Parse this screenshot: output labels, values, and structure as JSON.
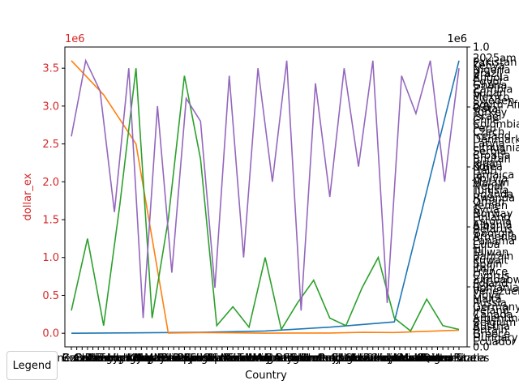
{
  "chart_data": {
    "type": "line",
    "title": "",
    "xlabel": "Country",
    "ylabel": "dollar_ex",
    "left_axis": {
      "label_color": "#d62728",
      "ylim": [
        -180000,
        3780000
      ],
      "ticks": [
        0.0,
        0.5,
        1.0,
        1.5,
        2.0,
        2.5,
        3.0,
        3.5
      ],
      "tick_labels": [
        "0.0",
        "0.5",
        "1.0",
        "1.5",
        "2.0",
        "2.5",
        "3.0",
        "3.5"
      ],
      "offset_text": "1e6"
    },
    "right_axis": {
      "ylim": [
        0.0,
        1.0
      ],
      "ticks": [
        0.0,
        0.2,
        0.4,
        0.6,
        0.8,
        1.0
      ],
      "tick_labels": [
        "0.0",
        "0.2",
        "0.4",
        "0.6",
        "0.8",
        "1.0"
      ],
      "offset_text": "1e6",
      "overlapping_labels": [
        "2025am",
        "Pakistan",
        "Kenya",
        "Nigeria",
        "Brazil",
        "Angola",
        "Egypt",
        "Ghana",
        "Zambia",
        "Sudan",
        "Mexico",
        "Sweden",
        "South Africa",
        "Qatar",
        "Turkey",
        "Israel",
        "Chile",
        "Colombia",
        "Peru",
        "Czech",
        "Iceland",
        "Denmark",
        "Latvia",
        "Lithuania",
        "Serbia",
        "Croatia",
        "Bhutan",
        "Japan",
        "Korea",
        "Haiti",
        "Jamaica",
        "Bolivia",
        "Malawi",
        "Nepal",
        "Tunisia",
        "Uganda",
        "Rwanda",
        "Oman",
        "Yemen",
        "Syria",
        "Norway",
        "Finland",
        "Estonia",
        "Albania",
        "Belarus",
        "Georgia",
        "Armenia",
        "Panama",
        "Cuba",
        "Fiji",
        "Taiwan",
        "Bahrain",
        "Kuwait",
        "Spain",
        "Italy",
        "France",
        "Cyprus",
        "Zimbabwe",
        "Poland",
        "Romania",
        "Venezuela",
        "Libya",
        "Malta",
        "Russia",
        "Germany",
        "Ireland",
        "Canada",
        "Argentina",
        "Belgium",
        "Austria",
        "Britain",
        "Greece",
        "Hungary",
        "Ecuador"
      ]
    },
    "x_tick_labels": [
      "Venezuela",
      "Brazil",
      "Canada",
      "Chile",
      "Britain",
      "Colombia",
      "Czech",
      "Denmark",
      "Egypt",
      "Euro area",
      "Hong Kong",
      "Hungary",
      "India",
      "Indonesia",
      "Israel",
      "Japan",
      "Malaysia",
      "Mexico",
      "New Zealand",
      "Norway",
      "Pakistan",
      "Peru",
      "Philippines",
      "Poland",
      "Russia",
      "Saudi Arabia",
      "Singapore",
      "South Africa",
      "South Korea",
      "Sri Lanka",
      "Sweden",
      "Switzerland",
      "Taiwan",
      "Thailand",
      "Turkey",
      "UAE",
      "Ukraine",
      "Uruguay",
      "Vietnam",
      "Argentina",
      "Australia",
      "Austria",
      "Belgium",
      "Finland",
      "France",
      "Germany",
      "Greece",
      "Ireland",
      "Italy",
      "Netherlands",
      "Portugal",
      "Spain",
      "Estonia",
      "Latvia",
      "Lithuania",
      "Slovakia",
      "Slovenia",
      "Azerbaijan",
      "Bahrain",
      "Croatia",
      "Guatemala",
      "Honduras",
      "Jordan",
      "Kuwait",
      "Lebanon",
      "Moldova",
      "Nicaragua",
      "Oman",
      "Qatar",
      "Romania",
      "Costa Rica",
      "United States",
      "Venezuela"
    ],
    "series": [
      {
        "color": "#1f77b4",
        "values": [
          0,
          5000,
          12000,
          30000,
          80000,
          150000,
          3600000
        ]
      },
      {
        "color": "#ff7f0e",
        "values": [
          3600000,
          3150000,
          2500000,
          2000,
          8000,
          5000,
          1000,
          3000,
          2500,
          12000,
          9000,
          25000,
          40000
        ]
      },
      {
        "color": "#2ca02c",
        "values": [
          300000,
          1250000,
          100000,
          1700000,
          3500000,
          200000,
          1500000,
          3400000,
          2300000,
          100000,
          350000,
          80000,
          1000000,
          50000,
          400000,
          700000,
          200000,
          100000,
          600000,
          1000000,
          200000,
          30000,
          450000,
          100000,
          50000
        ]
      },
      {
        "color": "#9467bd",
        "values": [
          2600000,
          3600000,
          3200000,
          1600000,
          3500000,
          200000,
          3000000,
          800000,
          3100000,
          2800000,
          600000,
          3400000,
          1000000,
          3500000,
          2000000,
          3600000,
          300000,
          3300000,
          1800000,
          3500000,
          2200000,
          3600000,
          400000,
          3400000,
          2900000,
          3600000,
          2000000,
          3500000
        ]
      }
    ],
    "legend": {
      "title": "Legend",
      "placement": "lower-left-outside"
    },
    "grid": false
  }
}
